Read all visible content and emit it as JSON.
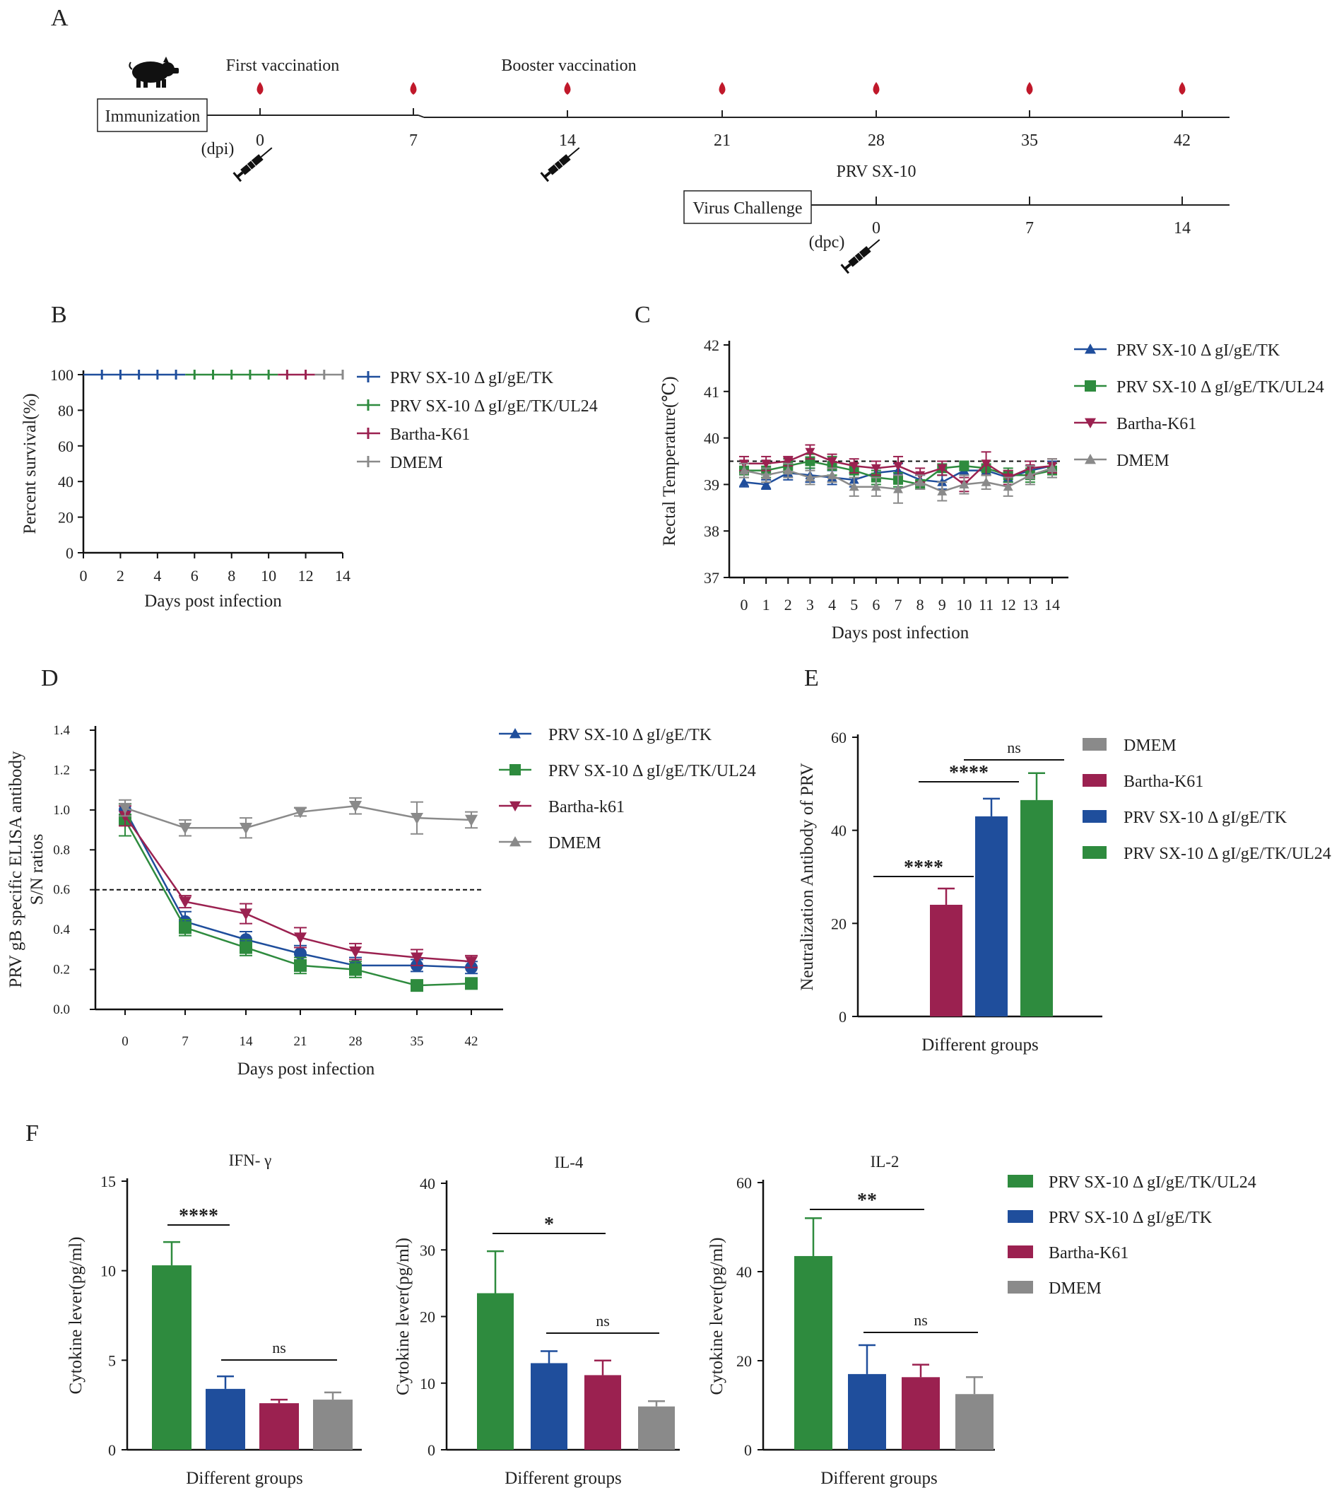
{
  "panels": {
    "A": "A",
    "B": "B",
    "C": "C",
    "D": "D",
    "E": "E",
    "F": "F"
  },
  "colors": {
    "tk": "#1f4e9c",
    "ul24": "#2e8b3e",
    "bartha": "#9b2150",
    "dmem": "#8a8a8a",
    "drop": "#c0182a"
  },
  "timeline": {
    "immunization_label": "Immunization",
    "first_vaccination": "First vaccination",
    "booster_vaccination": "Booster vaccination",
    "dpi_label": "(dpi)",
    "dpi_ticks": [
      "0",
      "7",
      "14",
      "21",
      "28",
      "35",
      "42"
    ],
    "challenge_label": "Virus Challenge",
    "prv_label": "PRV SX-10",
    "dpc_label": "(dpc)",
    "dpc_ticks": [
      "0",
      "7",
      "14"
    ],
    "icons": {
      "pig": "pig-icon",
      "syringe": "syringe-icon",
      "drop": "blood-drop-icon"
    }
  },
  "chart_data": [
    {
      "id": "B",
      "type": "line",
      "title": "",
      "xlabel": "Days post infection",
      "ylabel": "Percent survival(%)",
      "xlim": [
        0,
        14
      ],
      "ylim": [
        0,
        100
      ],
      "xticks": [
        0,
        2,
        4,
        6,
        8,
        10,
        12,
        14
      ],
      "yticks": [
        0,
        20,
        40,
        60,
        80,
        100
      ],
      "series": [
        {
          "name": "PRV SX-10 Δ gI/gE/TK",
          "color": "tk",
          "x": [
            0,
            14
          ],
          "y": [
            100,
            100
          ],
          "censor": [
            1,
            2,
            3,
            4,
            5
          ]
        },
        {
          "name": "PRV SX-10 Δ gI/gE/TK/UL24",
          "color": "ul24",
          "x": [
            0,
            14
          ],
          "y": [
            100,
            100
          ],
          "censor": [
            6,
            7,
            8,
            9,
            10
          ]
        },
        {
          "name": "Bartha-K61",
          "color": "bartha",
          "x": [
            0,
            14
          ],
          "y": [
            100,
            100
          ],
          "censor": [
            11,
            12
          ]
        },
        {
          "name": "DMEM",
          "color": "dmem",
          "x": [
            0,
            14
          ],
          "y": [
            100,
            100
          ],
          "censor": [
            13,
            14
          ]
        }
      ]
    },
    {
      "id": "C",
      "type": "line",
      "title": "",
      "xlabel": "Days post infection",
      "ylabel": "Rectal Temperature(℃)",
      "xlim": [
        0,
        14
      ],
      "ylim": [
        37,
        42
      ],
      "xticks": [
        0,
        1,
        2,
        3,
        4,
        5,
        6,
        7,
        8,
        9,
        10,
        11,
        12,
        13,
        14
      ],
      "yticks": [
        37,
        38,
        39,
        40,
        41,
        42
      ],
      "reference_line": 39.5,
      "series": [
        {
          "name": "PRV SX-10 Δ gI/gE/TK",
          "color": "tk",
          "marker": "triangle-up",
          "y": [
            39.05,
            39.0,
            39.25,
            39.2,
            39.15,
            39.1,
            39.25,
            39.3,
            39.1,
            39.05,
            39.3,
            39.3,
            39.15,
            39.3,
            39.4
          ],
          "err": [
            0.1,
            0.1,
            0.15,
            0.15,
            0.15,
            0.15,
            0.1,
            0.15,
            0.1,
            0.15,
            0.1,
            0.1,
            0.1,
            0.1,
            0.1
          ]
        },
        {
          "name": "PRV SX-10 Δ gI/gE/TK/UL24",
          "color": "ul24",
          "marker": "square",
          "y": [
            39.3,
            39.3,
            39.4,
            39.5,
            39.4,
            39.3,
            39.15,
            39.1,
            39.0,
            39.35,
            39.4,
            39.35,
            39.2,
            39.2,
            39.3
          ],
          "err": [
            0.15,
            0.15,
            0.15,
            0.15,
            0.2,
            0.15,
            0.15,
            0.15,
            0.1,
            0.15,
            0.1,
            0.15,
            0.15,
            0.15,
            0.15
          ]
        },
        {
          "name": "Bartha-K61",
          "color": "bartha",
          "marker": "triangle-down",
          "y": [
            39.45,
            39.45,
            39.5,
            39.7,
            39.5,
            39.4,
            39.35,
            39.4,
            39.2,
            39.35,
            39.0,
            39.45,
            39.15,
            39.35,
            39.4
          ],
          "err": [
            0.15,
            0.15,
            0.1,
            0.15,
            0.15,
            0.15,
            0.15,
            0.2,
            0.15,
            0.15,
            0.15,
            0.25,
            0.15,
            0.15,
            0.15
          ]
        },
        {
          "name": "DMEM",
          "color": "dmem",
          "marker": "triangle-up",
          "y": [
            39.3,
            39.2,
            39.3,
            39.15,
            39.2,
            38.95,
            38.95,
            38.9,
            39.05,
            38.85,
            39.0,
            39.05,
            38.95,
            39.2,
            39.35
          ],
          "err": [
            0.15,
            0.15,
            0.15,
            0.15,
            0.15,
            0.2,
            0.2,
            0.3,
            0.15,
            0.2,
            0.2,
            0.15,
            0.2,
            0.2,
            0.2
          ]
        }
      ]
    },
    {
      "id": "D",
      "type": "line",
      "title": "",
      "xlabel": "Days post infection",
      "ylabel": [
        "PRV gB specific ELISA antibody",
        "S/N ratios"
      ],
      "x": [
        0,
        7,
        14,
        21,
        28,
        35,
        42
      ],
      "xlim": [
        0,
        42
      ],
      "ylim": [
        0,
        1.4
      ],
      "yticks": [
        "0.0",
        "0.2",
        "0.4",
        "0.6",
        "0.8",
        "1.0",
        "1.2",
        "1.4"
      ],
      "reference_line": 0.6,
      "series": [
        {
          "name": "PRV SX-10 Δ gI/gE/TK",
          "color": "tk",
          "marker": "circle",
          "y": [
            1.0,
            0.44,
            0.35,
            0.28,
            0.22,
            0.22,
            0.21
          ],
          "err": [
            0.03,
            0.05,
            0.04,
            0.04,
            0.04,
            0.03,
            0.03
          ]
        },
        {
          "name": "PRV SX-10 Δ gI/gE/TK/UL24",
          "color": "ul24",
          "marker": "square",
          "y": [
            0.95,
            0.41,
            0.31,
            0.22,
            0.2,
            0.12,
            0.13
          ],
          "err": [
            0.08,
            0.04,
            0.04,
            0.04,
            0.04,
            0.02,
            0.02
          ]
        },
        {
          "name": "Bartha-k61",
          "color": "bartha",
          "marker": "triangle-down",
          "y": [
            0.97,
            0.54,
            0.48,
            0.36,
            0.29,
            0.26,
            0.24
          ],
          "err": [
            0.05,
            0.03,
            0.05,
            0.05,
            0.04,
            0.04,
            0.03
          ]
        },
        {
          "name": "DMEM",
          "color": "dmem",
          "marker": "triangle-down",
          "y": [
            1.01,
            0.91,
            0.91,
            0.99,
            1.02,
            0.96,
            0.95
          ],
          "err": [
            0.04,
            0.04,
            0.05,
            0.02,
            0.04,
            0.08,
            0.04
          ]
        }
      ]
    },
    {
      "id": "E",
      "type": "bar",
      "title": "",
      "xlabel": "Different groups",
      "ylabel": "Neutralization Antibody of PRV",
      "ylim": [
        0,
        60
      ],
      "yticks": [
        0,
        20,
        40,
        60
      ],
      "categories": [
        "DMEM",
        "Bartha-K61",
        "PRV SX-10 Δ gI/gE/TK",
        "PRV SX-10 Δ gI/gE/TK/UL24"
      ],
      "colors": [
        "dmem",
        "bartha",
        "tk",
        "ul24"
      ],
      "values": [
        0,
        24,
        43,
        46.5
      ],
      "err": [
        0,
        3.5,
        3.8,
        5.8
      ],
      "significance": [
        {
          "from": 0,
          "to": 1,
          "label": "****"
        },
        {
          "from": 1,
          "to": 2,
          "label": "****"
        },
        {
          "from": 2,
          "to": 3,
          "label": "ns"
        }
      ]
    },
    {
      "id": "F1",
      "type": "bar",
      "title": "IFN- γ",
      "xlabel": "Different groups",
      "ylabel": "Cytokine lever(pg/ml)",
      "ylim": [
        0,
        15
      ],
      "yticks": [
        0,
        5,
        10,
        15
      ],
      "categories": [
        "PRV SX-10 Δ gI/gE/TK/UL24",
        "PRV SX-10 Δ gI/gE/TK",
        "Bartha-K61",
        "DMEM"
      ],
      "colors": [
        "ul24",
        "tk",
        "bartha",
        "dmem"
      ],
      "values": [
        10.3,
        3.4,
        2.6,
        2.8
      ],
      "err": [
        1.3,
        0.7,
        0.2,
        0.4
      ],
      "significance": [
        {
          "from": 0,
          "to": 1,
          "label": "****"
        },
        {
          "from": 1,
          "to": 3,
          "label": "ns"
        }
      ]
    },
    {
      "id": "F2",
      "type": "bar",
      "title": "IL-4",
      "xlabel": "Different groups",
      "ylabel": "Cytokine lever(pg/ml)",
      "ylim": [
        0,
        40
      ],
      "yticks": [
        0,
        10,
        20,
        30,
        40
      ],
      "categories": [
        "PRV SX-10 Δ gI/gE/TK/UL24",
        "PRV SX-10 Δ gI/gE/TK",
        "Bartha-K61",
        "DMEM"
      ],
      "colors": [
        "ul24",
        "tk",
        "bartha",
        "dmem"
      ],
      "values": [
        23.5,
        13.0,
        11.2,
        6.5
      ],
      "err": [
        6.3,
        1.8,
        2.2,
        0.8
      ],
      "significance": [
        {
          "from": 0,
          "to": 2,
          "label": "*"
        },
        {
          "from": 1,
          "to": 3,
          "label": "ns"
        }
      ]
    },
    {
      "id": "F3",
      "type": "bar",
      "title": "IL-2",
      "xlabel": "Different groups",
      "ylabel": "Cytokine lever(pg/ml)",
      "ylim": [
        0,
        60
      ],
      "yticks": [
        0,
        20,
        40,
        60
      ],
      "categories": [
        "PRV SX-10 Δ gI/gE/TK/UL24",
        "PRV SX-10 Δ gI/gE/TK",
        "Bartha-K61",
        "DMEM"
      ],
      "colors": [
        "ul24",
        "tk",
        "bartha",
        "dmem"
      ],
      "values": [
        43.5,
        17.0,
        16.3,
        12.5
      ],
      "err": [
        8.5,
        6.5,
        2.8,
        3.8
      ],
      "significance": [
        {
          "from": 0,
          "to": 2,
          "label": "**"
        },
        {
          "from": 1,
          "to": 3,
          "label": "ns"
        }
      ]
    }
  ],
  "legend_F": {
    "entries": [
      "PRV SX-10 Δ gI/gE/TK/UL24",
      "PRV SX-10 Δ gI/gE/TK",
      "Bartha-K61",
      "DMEM"
    ],
    "colors": [
      "ul24",
      "tk",
      "bartha",
      "dmem"
    ]
  }
}
